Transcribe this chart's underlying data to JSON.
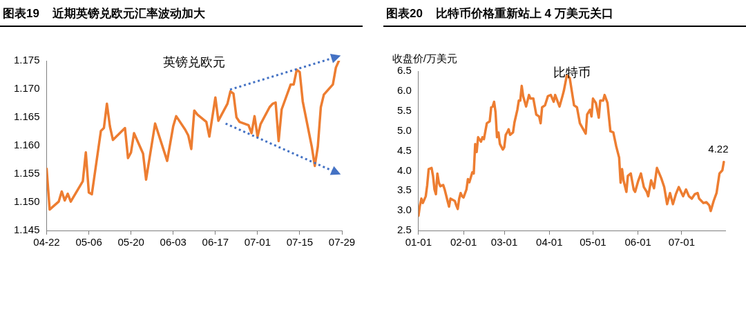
{
  "chart_data": [
    {
      "type": "line",
      "title": "图表19    近期英镑兑欧元汇率波动加大",
      "subtitle": "英镑兑欧元",
      "xlim": [
        "--04-22",
        "--07-29"
      ],
      "xticks": [
        {
          "value": "--04-22",
          "label": "04-22"
        },
        {
          "value": "--05-06",
          "label": "05-06"
        },
        {
          "value": "--05-20",
          "label": "05-20"
        },
        {
          "value": "--06-03",
          "label": "06-03"
        },
        {
          "value": "--06-17",
          "label": "06-17"
        },
        {
          "value": "--07-01",
          "label": "07-01"
        },
        {
          "value": "--07-15",
          "label": "07-15"
        },
        {
          "value": "--07-29",
          "label": "07-29"
        }
      ],
      "ylim": [
        1.145,
        1.175
      ],
      "yticks": [
        {
          "value": 1.145,
          "label": "1.145"
        },
        {
          "value": 1.15,
          "label": "1.150"
        },
        {
          "value": 1.155,
          "label": "1.155"
        },
        {
          "value": 1.16,
          "label": "1.160"
        },
        {
          "value": 1.165,
          "label": "1.165"
        },
        {
          "value": 1.17,
          "label": "1.170"
        },
        {
          "value": 1.175,
          "label": "1.175"
        }
      ],
      "legend": false,
      "series": [
        {
          "color": "#ed7d31",
          "x": [
            "--04-22",
            "--04-23",
            "--04-26",
            "--04-27",
            "--04-28",
            "--04-29",
            "--04-30",
            "--05-04",
            "--05-05",
            "--05-06",
            "--05-07",
            "--05-10",
            "--05-11",
            "--05-12",
            "--05-13",
            "--05-14",
            "--05-18",
            "--05-19",
            "--05-20",
            "--05-21",
            "--05-24",
            "--05-25",
            "--05-28",
            "--06-01",
            "--06-03",
            "--06-04",
            "--06-07",
            "--06-08",
            "--06-09",
            "--06-10",
            "--06-11",
            "--06-14",
            "--06-15",
            "--06-17",
            "--06-18",
            "--06-21",
            "--06-22",
            "--06-23",
            "--06-24",
            "--06-25",
            "--06-28",
            "--06-29",
            "--06-30",
            "--07-01",
            "--07-02",
            "--07-05",
            "--07-06",
            "--07-07",
            "--07-08",
            "--07-09",
            "--07-12",
            "--07-13",
            "--07-14",
            "--07-15",
            "--07-16",
            "--07-19",
            "--07-20",
            "--07-21",
            "--07-22",
            "--07-23",
            "--07-26",
            "--07-27",
            "--07-28"
          ],
          "values": [
            1.1559,
            1.1487,
            1.1501,
            1.1519,
            1.1503,
            1.1515,
            1.1501,
            1.1537,
            1.1588,
            1.1517,
            1.1514,
            1.1626,
            1.1631,
            1.1674,
            1.1634,
            1.161,
            1.1631,
            1.1578,
            1.1588,
            1.1622,
            1.1586,
            1.154,
            1.1639,
            1.1573,
            1.1634,
            1.1652,
            1.1628,
            1.1618,
            1.1594,
            1.1662,
            1.1655,
            1.1642,
            1.1616,
            1.1685,
            1.1644,
            1.1674,
            1.1696,
            1.1692,
            1.165,
            1.1642,
            1.1636,
            1.1622,
            1.1652,
            1.1616,
            1.1638,
            1.1668,
            1.1674,
            1.1676,
            1.1608,
            1.1664,
            1.1708,
            1.1708,
            1.1734,
            1.173,
            1.1678,
            1.1598,
            1.1564,
            1.1598,
            1.1668,
            1.169,
            1.1708,
            1.1738,
            1.175
          ]
        }
      ]
    },
    {
      "type": "line",
      "title": "图表20    比特币价格重新站上 4 万美元关口",
      "subtitle": "比特币",
      "ylabel": "收盘价/万美元",
      "xlim": [
        "--01-01",
        "--07-31"
      ],
      "xticks": [
        {
          "value": "--01-01",
          "label": "01-01"
        },
        {
          "value": "--02-01",
          "label": "02-01"
        },
        {
          "value": "--03-01",
          "label": "03-01"
        },
        {
          "value": "--04-01",
          "label": "04-01"
        },
        {
          "value": "--05-01",
          "label": "05-01"
        },
        {
          "value": "--06-01",
          "label": "06-01"
        },
        {
          "value": "--07-01",
          "label": "07-01"
        }
      ],
      "ylim": [
        2.5,
        6.5
      ],
      "yticks": [
        {
          "value": 2.5,
          "label": "2.5"
        },
        {
          "value": 3,
          "label": "3.0"
        },
        {
          "value": 3.5,
          "label": "3.5"
        },
        {
          "value": 4,
          "label": "4.0"
        },
        {
          "value": 4.5,
          "label": "4.5"
        },
        {
          "value": 5,
          "label": "5.0"
        },
        {
          "value": 5.5,
          "label": "5.5"
        },
        {
          "value": 6,
          "label": "6.0"
        },
        {
          "value": 6.5,
          "label": "6.5"
        }
      ],
      "legend": false,
      "annotations": [
        {
          "text": "4.22",
          "x": "--07-30",
          "y": 4.22
        }
      ],
      "series": [
        {
          "color": "#ed7d31",
          "x": [
            "--01-01",
            "--01-02",
            "--01-03",
            "--01-04",
            "--01-06",
            "--01-07",
            "--01-08",
            "--01-10",
            "--01-11",
            "--01-12",
            "--01-13",
            "--01-14",
            "--01-15",
            "--01-16",
            "--01-18",
            "--01-19",
            "--01-21",
            "--01-22",
            "--01-23",
            "--01-26",
            "--01-27",
            "--01-28",
            "--01-29",
            "--01-30",
            "--01-31",
            "--02-01",
            "--02-03",
            "--02-04",
            "--02-05",
            "--02-07",
            "--02-08",
            "--02-09",
            "--02-10",
            "--02-11",
            "--02-13",
            "--02-14",
            "--02-15",
            "--02-17",
            "--02-19",
            "--02-20",
            "--02-21",
            "--02-22",
            "--02-23",
            "--02-24",
            "--02-25",
            "--02-26",
            "--02-28",
            "--03-01",
            "--03-02",
            "--03-03",
            "--03-04",
            "--03-05",
            "--03-07",
            "--03-08",
            "--03-10",
            "--03-11",
            "--03-12",
            "--03-13",
            "--03-14",
            "--03-16",
            "--03-18",
            "--03-19",
            "--03-21",
            "--03-23",
            "--03-25",
            "--03-26",
            "--03-27",
            "--03-29",
            "--03-31",
            "--04-02",
            "--04-04",
            "--04-05",
            "--04-08",
            "--04-10",
            "--04-11",
            "--04-13",
            "--04-15",
            "--04-18",
            "--04-20",
            "--04-22",
            "--04-26",
            "--04-27",
            "--04-29",
            "--04-30",
            "--05-01",
            "--05-03",
            "--05-05",
            "--05-06",
            "--05-08",
            "--05-09",
            "--05-11",
            "--05-13",
            "--05-15",
            "--05-17",
            "--05-19",
            "--05-20",
            "--05-21",
            "--05-22",
            "--05-24",
            "--05-25",
            "--05-27",
            "--05-29",
            "--05-30",
            "--06-01",
            "--06-03",
            "--06-05",
            "--06-07",
            "--06-08",
            "--06-10",
            "--06-12",
            "--06-14",
            "--06-17",
            "--06-19",
            "--06-21",
            "--06-23",
            "--06-25",
            "--06-27",
            "--06-29",
            "--07-02",
            "--07-04",
            "--07-06",
            "--07-08",
            "--07-10",
            "--07-12",
            "--07-13",
            "--07-16",
            "--07-18",
            "--07-20",
            "--07-21",
            "--07-23",
            "--07-25",
            "--07-27",
            "--07-29",
            "--07-30"
          ],
          "values": [
            2.87,
            3.13,
            3.3,
            3.19,
            3.36,
            3.64,
            4.04,
            4.07,
            3.87,
            3.53,
            3.41,
            3.93,
            3.7,
            3.61,
            3.64,
            3.53,
            3.24,
            3.1,
            3.3,
            3.24,
            3.13,
            3.04,
            3.3,
            3.44,
            3.36,
            3.33,
            3.53,
            3.79,
            3.71,
            3.96,
            3.93,
            4.67,
            4.47,
            4.84,
            4.73,
            4.84,
            4.79,
            5.19,
            5.24,
            5.59,
            5.61,
            5.73,
            5.47,
            4.84,
            4.96,
            4.67,
            4.53,
            4.59,
            4.9,
            4.96,
            5.04,
            4.9,
            4.96,
            5.21,
            5.53,
            5.76,
            5.76,
            6.13,
            5.87,
            5.61,
            5.9,
            5.81,
            5.81,
            5.41,
            5.36,
            5.19,
            5.59,
            5.64,
            5.87,
            5.9,
            5.73,
            5.9,
            5.61,
            5.87,
            6.01,
            6.39,
            6.33,
            5.64,
            5.59,
            5.19,
            4.93,
            5.41,
            5.53,
            5.36,
            5.81,
            5.7,
            5.33,
            5.76,
            5.76,
            5.9,
            5.7,
            4.99,
            4.96,
            4.61,
            4.33,
            3.7,
            4.04,
            3.76,
            3.47,
            3.87,
            3.93,
            3.53,
            3.47,
            3.73,
            3.93,
            3.59,
            3.47,
            3.36,
            3.76,
            3.56,
            4.07,
            3.81,
            3.59,
            3.16,
            3.44,
            3.16,
            3.41,
            3.59,
            3.36,
            3.53,
            3.36,
            3.3,
            3.41,
            3.44,
            3.3,
            3.19,
            3.21,
            3.13,
            2.99,
            3.24,
            3.44,
            3.93,
            4.01,
            4.22
          ]
        }
      ]
    }
  ]
}
